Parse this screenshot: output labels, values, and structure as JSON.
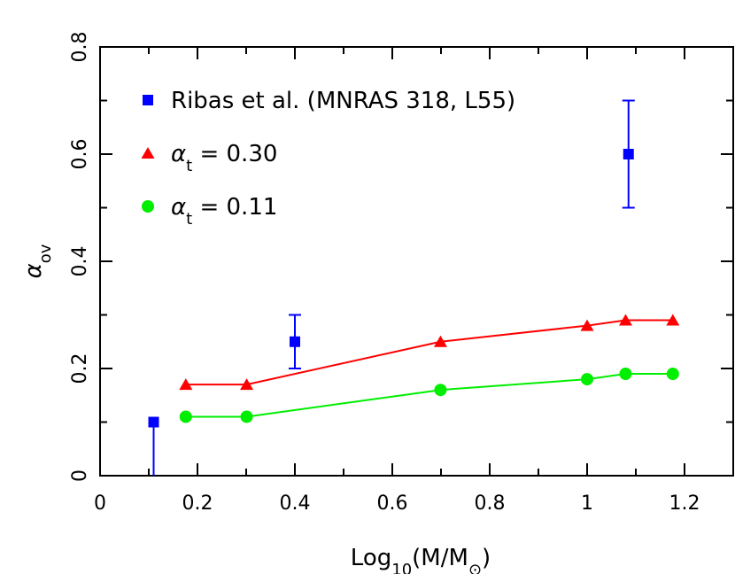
{
  "chart_data": {
    "type": "scatter",
    "xlabel": {
      "base": "Log",
      "sub1": "10",
      "mid": "(M/M",
      "sub2": "⊙",
      "end": ")"
    },
    "ylabel": {
      "base": "α",
      "sub": "ov"
    },
    "xlim": [
      0,
      1.3
    ],
    "ylim": [
      0,
      0.8
    ],
    "xticks": [
      0,
      0.2,
      0.4,
      0.6,
      0.8,
      1,
      1.2
    ],
    "xtick_labels": [
      "0",
      "0.2",
      "0.4",
      "0.6",
      "0.8",
      "1",
      "1.2"
    ],
    "yticks": [
      0,
      0.2,
      0.4,
      0.6,
      0.8
    ],
    "ytick_labels": [
      "0",
      "0.2",
      "0.4",
      "0.6",
      "0.8"
    ],
    "grid": false,
    "legend_position": "top-left",
    "series": [
      {
        "name": "Ribas et al. (MNRAS 318, L55)",
        "legend_parts": {
          "text": "Ribas et al. (MNRAS 318, L55)"
        },
        "marker": "square",
        "color": "#0000ff",
        "line": false,
        "x": [
          0.11,
          0.4,
          1.085
        ],
        "y": [
          0.1,
          0.25,
          0.6
        ],
        "err_low": [
          0.1,
          0.05,
          0.1
        ],
        "err_high": [
          0.0,
          0.05,
          0.1
        ]
      },
      {
        "name": "α_t = 0.30",
        "legend_parts": {
          "symbol": "α",
          "sub": "t",
          "rest": " = 0.30"
        },
        "marker": "triangle",
        "color": "#ff0000",
        "line": true,
        "x": [
          0.176,
          0.301,
          0.699,
          1.0,
          1.079,
          1.176
        ],
        "y": [
          0.17,
          0.17,
          0.25,
          0.28,
          0.29,
          0.29
        ]
      },
      {
        "name": "α_t = 0.11",
        "legend_parts": {
          "symbol": "α",
          "sub": "t",
          "rest": " = 0.11"
        },
        "marker": "circle",
        "color": "#00ee00",
        "line": true,
        "x": [
          0.176,
          0.301,
          0.699,
          1.0,
          1.079,
          1.176
        ],
        "y": [
          0.11,
          0.11,
          0.16,
          0.18,
          0.19,
          0.19
        ]
      }
    ]
  }
}
